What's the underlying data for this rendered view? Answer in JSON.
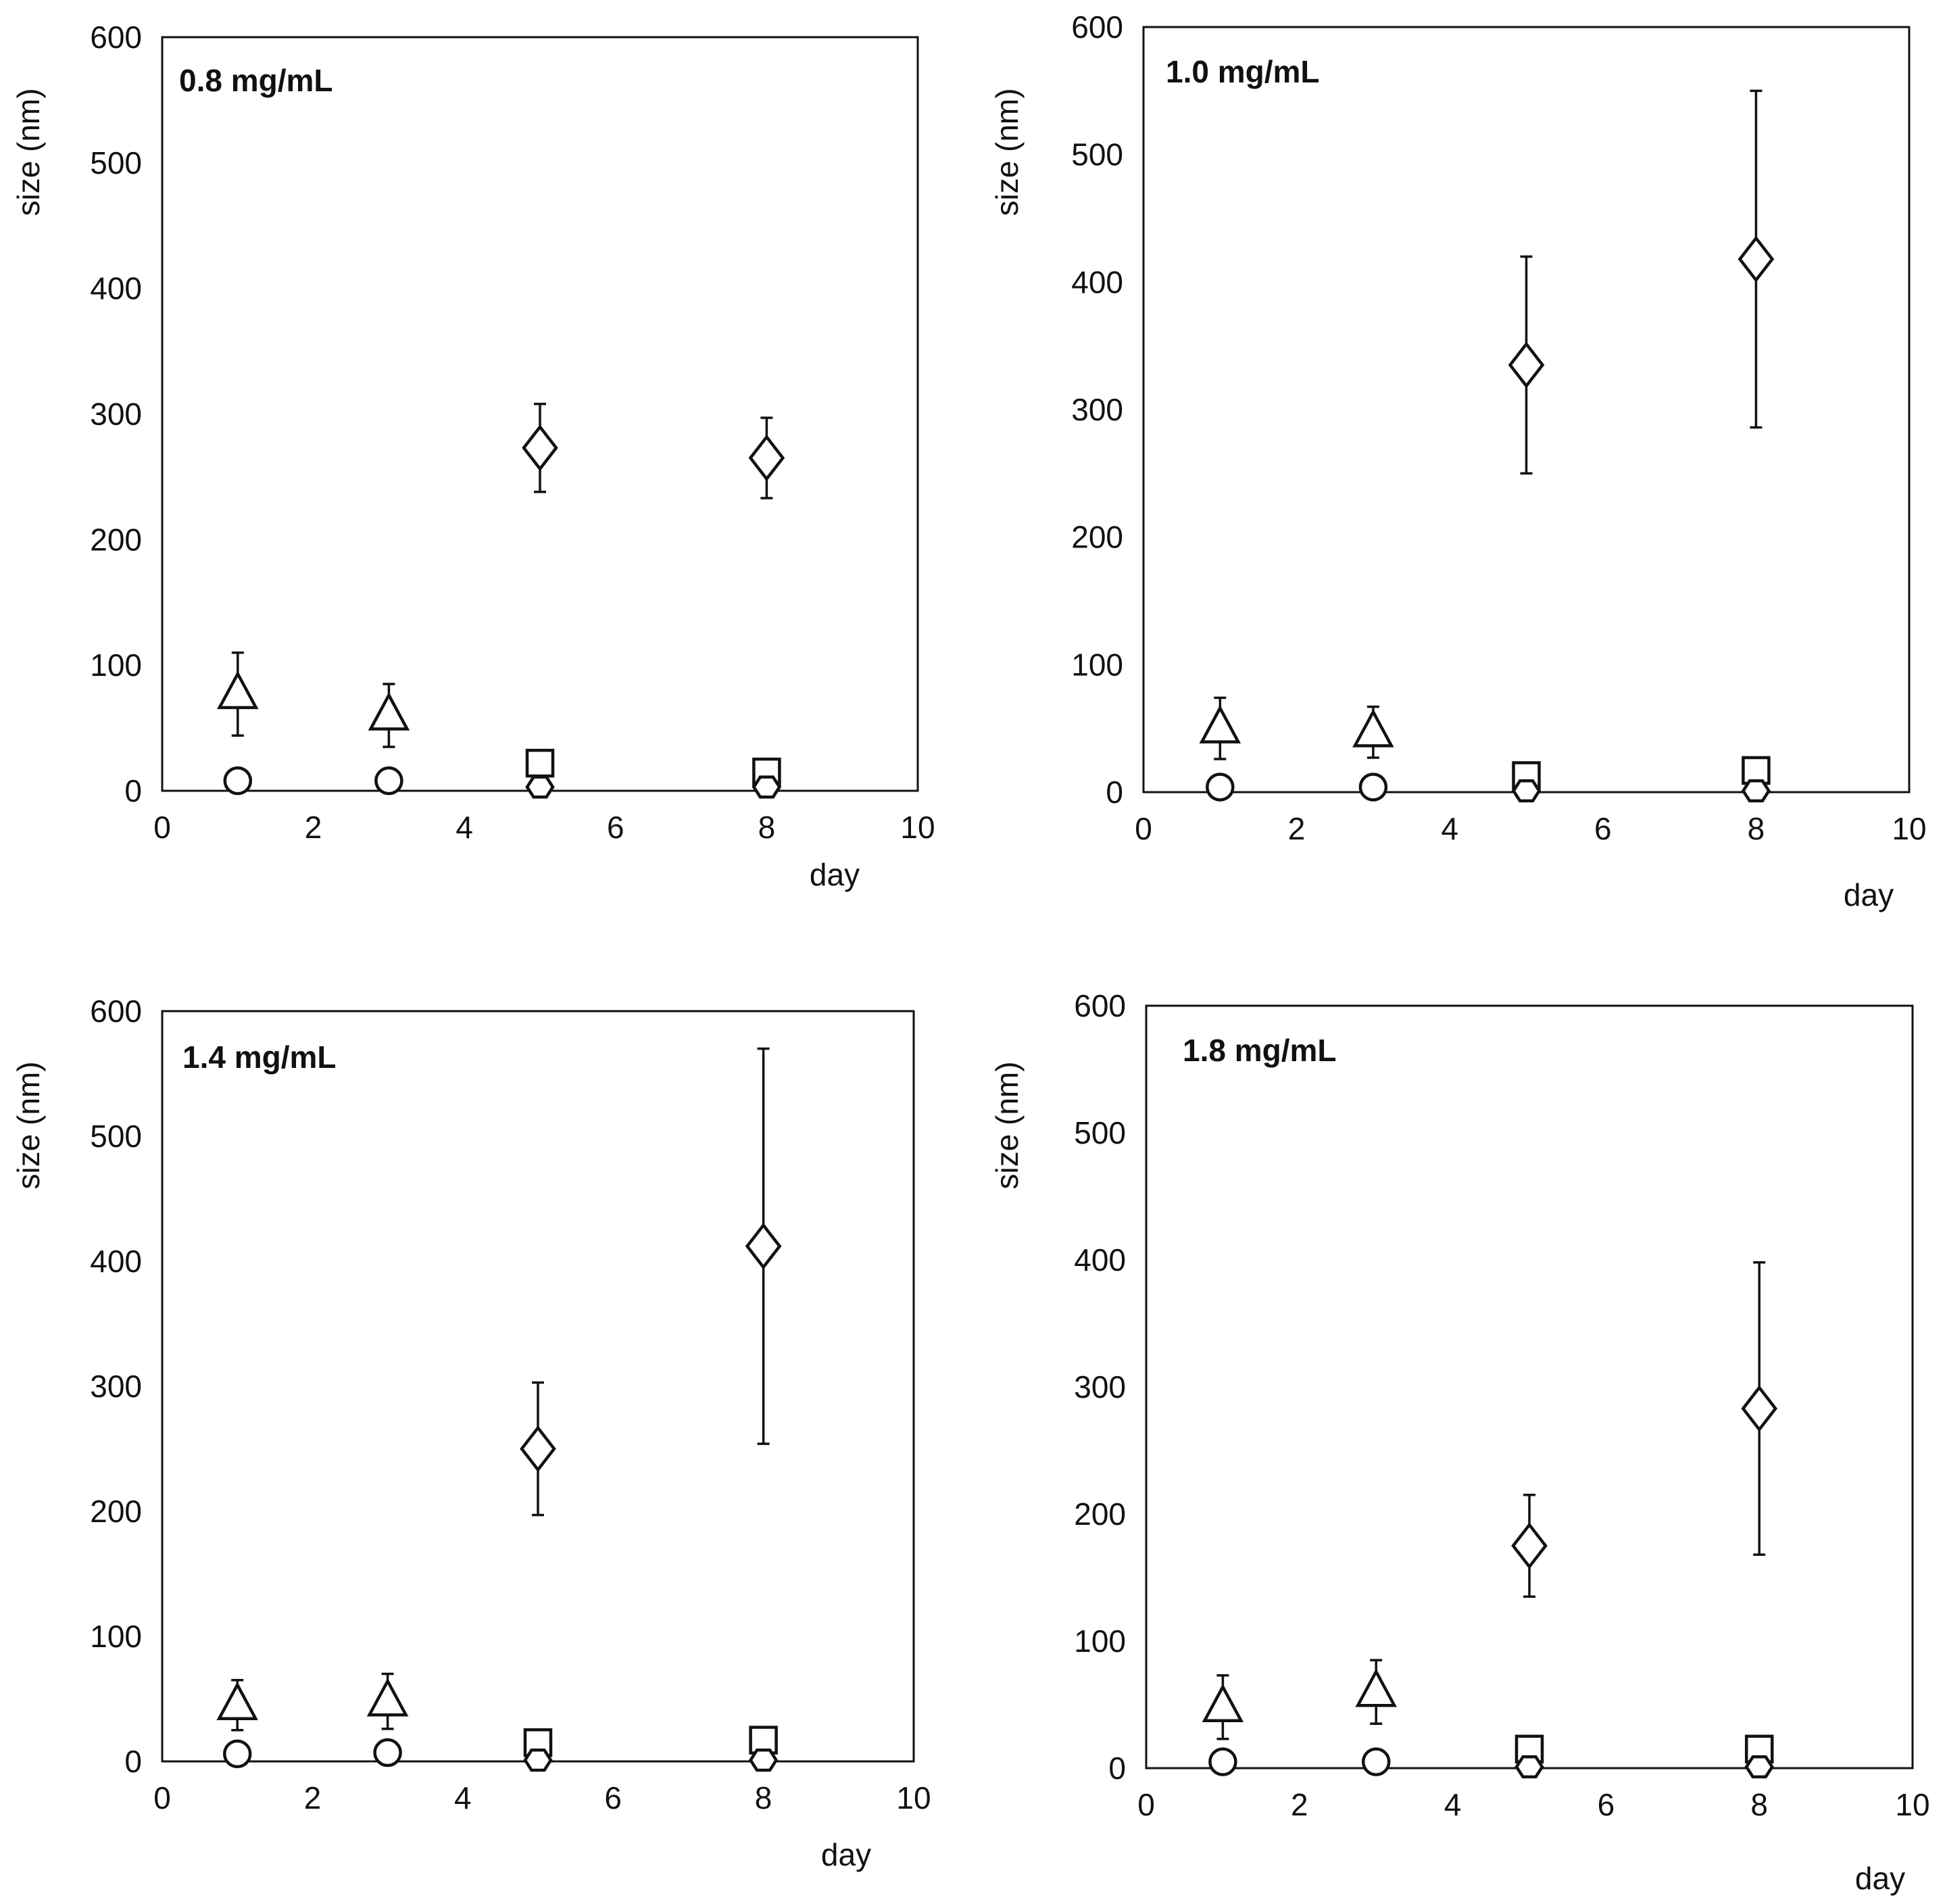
{
  "chart_data": [
    {
      "type": "scatter",
      "title": "0.8 mg/mL",
      "xlabel": "day",
      "ylabel": "size (nm)",
      "xlim": [
        0,
        10
      ],
      "ylim": [
        0,
        600
      ],
      "xticks": [
        "0",
        "2",
        "4",
        "6",
        "8",
        "10"
      ],
      "yticks": [
        "0",
        "100",
        "200",
        "300",
        "400",
        "500",
        "600"
      ],
      "series": [
        {
          "name": "diamond",
          "marker": "diamond",
          "points": [
            {
              "x": 5,
              "y": 273,
              "err": 35
            },
            {
              "x": 8,
              "y": 265,
              "err": 32
            }
          ]
        },
        {
          "name": "triangle",
          "marker": "triangle",
          "points": [
            {
              "x": 1,
              "y": 77,
              "err": 33
            },
            {
              "x": 3,
              "y": 60,
              "err": 25
            }
          ]
        },
        {
          "name": "square",
          "marker": "square",
          "points": [
            {
              "x": 5,
              "y": 22,
              "err": 4
            },
            {
              "x": 8,
              "y": 15,
              "err": 4
            }
          ]
        },
        {
          "name": "circle",
          "marker": "circle",
          "points": [
            {
              "x": 1,
              "y": 8,
              "err": 2
            },
            {
              "x": 3,
              "y": 8,
              "err": 2
            }
          ]
        },
        {
          "name": "hexagon",
          "marker": "hexagon",
          "points": [
            {
              "x": 5,
              "y": 3,
              "err": 1
            },
            {
              "x": 8,
              "y": 3,
              "err": 1
            }
          ]
        }
      ]
    },
    {
      "type": "scatter",
      "title": "1.0 mg/mL",
      "xlabel": "day",
      "ylabel": "size (nm)",
      "xlim": [
        0,
        10
      ],
      "ylim": [
        0,
        600
      ],
      "xticks": [
        "0",
        "2",
        "4",
        "6",
        "8",
        "10"
      ],
      "yticks": [
        "0",
        "100",
        "200",
        "300",
        "400",
        "500",
        "600"
      ],
      "series": [
        {
          "name": "diamond",
          "marker": "diamond",
          "points": [
            {
              "x": 5,
              "y": 335,
              "err": 85
            },
            {
              "x": 8,
              "y": 418,
              "err": 132
            }
          ]
        },
        {
          "name": "triangle",
          "marker": "triangle",
          "points": [
            {
              "x": 1,
              "y": 50,
              "err": 24
            },
            {
              "x": 3,
              "y": 47,
              "err": 20
            }
          ]
        },
        {
          "name": "square",
          "marker": "square",
          "points": [
            {
              "x": 5,
              "y": 13,
              "err": 4
            },
            {
              "x": 8,
              "y": 17,
              "err": 4
            }
          ]
        },
        {
          "name": "circle",
          "marker": "circle",
          "points": [
            {
              "x": 1,
              "y": 4,
              "err": 2
            },
            {
              "x": 3,
              "y": 4,
              "err": 2
            }
          ]
        },
        {
          "name": "hexagon",
          "marker": "hexagon",
          "points": [
            {
              "x": 5,
              "y": 1,
              "err": 1
            },
            {
              "x": 8,
              "y": 1,
              "err": 1
            }
          ]
        }
      ]
    },
    {
      "type": "scatter",
      "title": "1.4 mg/mL",
      "xlabel": "day",
      "ylabel": "size (nm)",
      "xlim": [
        0,
        10
      ],
      "ylim": [
        0,
        600
      ],
      "xticks": [
        "0",
        "2",
        "4",
        "6",
        "8",
        "10"
      ],
      "yticks": [
        "0",
        "100",
        "200",
        "300",
        "400",
        "500",
        "600"
      ],
      "series": [
        {
          "name": "diamond",
          "marker": "diamond",
          "points": [
            {
              "x": 5,
              "y": 250,
              "err": 53
            },
            {
              "x": 8,
              "y": 412,
              "err": 158
            }
          ]
        },
        {
          "name": "triangle",
          "marker": "triangle",
          "points": [
            {
              "x": 1,
              "y": 45,
              "err": 20
            },
            {
              "x": 3,
              "y": 48,
              "err": 22
            }
          ]
        },
        {
          "name": "square",
          "marker": "square",
          "points": [
            {
              "x": 5,
              "y": 15,
              "err": 4
            },
            {
              "x": 8,
              "y": 17,
              "err": 4
            }
          ]
        },
        {
          "name": "circle",
          "marker": "circle",
          "points": [
            {
              "x": 1,
              "y": 6,
              "err": 2
            },
            {
              "x": 3,
              "y": 7,
              "err": 2
            }
          ]
        },
        {
          "name": "hexagon",
          "marker": "hexagon",
          "points": [
            {
              "x": 5,
              "y": 1,
              "err": 1
            },
            {
              "x": 8,
              "y": 1,
              "err": 1
            }
          ]
        }
      ]
    },
    {
      "type": "scatter",
      "title": "1.8 mg/mL",
      "xlabel": "day",
      "ylabel": "size (nm)",
      "xlim": [
        0,
        10
      ],
      "ylim": [
        0,
        600
      ],
      "xticks": [
        "0",
        "2",
        "4",
        "6",
        "8",
        "10"
      ],
      "yticks": [
        "0",
        "100",
        "200",
        "300",
        "400",
        "500",
        "600"
      ],
      "series": [
        {
          "name": "diamond",
          "marker": "diamond",
          "points": [
            {
              "x": 5,
              "y": 175,
              "err": 40
            },
            {
              "x": 8,
              "y": 283,
              "err": 115
            }
          ]
        },
        {
          "name": "triangle",
          "marker": "triangle",
          "points": [
            {
              "x": 1,
              "y": 48,
              "err": 25
            },
            {
              "x": 3,
              "y": 60,
              "err": 25
            }
          ]
        },
        {
          "name": "square",
          "marker": "square",
          "points": [
            {
              "x": 5,
              "y": 15,
              "err": 4
            },
            {
              "x": 8,
              "y": 15,
              "err": 4
            }
          ]
        },
        {
          "name": "circle",
          "marker": "circle",
          "points": [
            {
              "x": 1,
              "y": 5,
              "err": 2
            },
            {
              "x": 3,
              "y": 5,
              "err": 2
            }
          ]
        },
        {
          "name": "hexagon",
          "marker": "hexagon",
          "points": [
            {
              "x": 5,
              "y": 1,
              "err": 1
            },
            {
              "x": 8,
              "y": 1,
              "err": 1
            }
          ]
        }
      ]
    }
  ]
}
